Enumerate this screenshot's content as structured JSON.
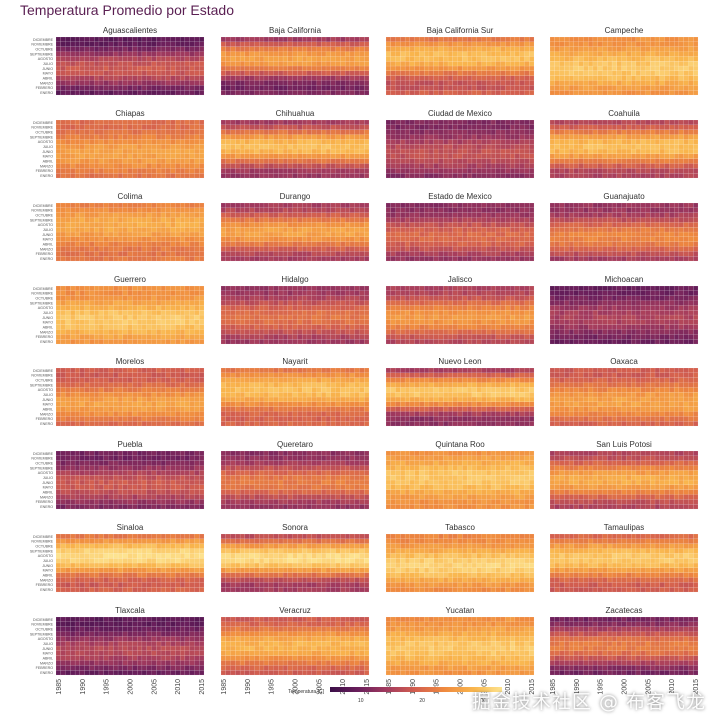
{
  "title": "Temperatura Promedio por Estado",
  "watermark": "掘金技术社区 @ 布客飞龙",
  "chart_data": {
    "type": "heatmap",
    "title": "Temperatura Promedio por Estado",
    "facet_layout": "4 columns x 8 rows",
    "x": {
      "min": 1985,
      "max": 2015,
      "ticks": [
        1985,
        1990,
        1995,
        2000,
        2005,
        2010,
        2015
      ]
    },
    "y_categories": [
      "ENERO",
      "FEBRERO",
      "MARZO",
      "ABRIL",
      "MAYO",
      "JUNIO",
      "JULIO",
      "AGOSTO",
      "SEPTIEMBRE",
      "OCTUBRE",
      "NOVIEMBRE",
      "DICIEMBRE"
    ],
    "legend": {
      "title": "Temperatura [C]",
      "position": "bottom",
      "ticks": [
        10,
        20,
        30
      ],
      "min": 5,
      "max": 33
    },
    "colors": [
      "#3b0f48",
      "#6b1f5c",
      "#a33b5e",
      "#d4604f",
      "#ef8a3f",
      "#f9b54d",
      "#fde38f"
    ],
    "panels": [
      {
        "name": "Aguascalientes",
        "base": 13,
        "amp": 5,
        "peak": 5
      },
      {
        "name": "Baja California",
        "base": 18,
        "amp": 8,
        "peak": 7
      },
      {
        "name": "Baja California Sur",
        "base": 23,
        "amp": 6,
        "peak": 7.5
      },
      {
        "name": "Campeche",
        "base": 27,
        "amp": 3,
        "peak": 5
      },
      {
        "name": "Chiapas",
        "base": 23,
        "amp": 3,
        "peak": 4.5
      },
      {
        "name": "Chihuahua",
        "base": 21,
        "amp": 8,
        "peak": 6
      },
      {
        "name": "Ciudad de Mexico",
        "base": 14,
        "amp": 3,
        "peak": 4.5
      },
      {
        "name": "Coahuila",
        "base": 22,
        "amp": 7,
        "peak": 6
      },
      {
        "name": "Colima",
        "base": 24,
        "amp": 3,
        "peak": 7
      },
      {
        "name": "Durango",
        "base": 20,
        "amp": 6,
        "peak": 5.5
      },
      {
        "name": "Estado de Mexico",
        "base": 16,
        "amp": 4,
        "peak": 4.5
      },
      {
        "name": "Guanajuato",
        "base": 18,
        "amp": 5,
        "peak": 4.5
      },
      {
        "name": "Guerrero",
        "base": 27,
        "amp": 3,
        "peak": 4.5
      },
      {
        "name": "Hidalgo",
        "base": 17,
        "amp": 4,
        "peak": 5
      },
      {
        "name": "Jalisco",
        "base": 20,
        "amp": 5,
        "peak": 5
      },
      {
        "name": "Michoacan",
        "base": 12,
        "amp": 3,
        "peak": 5
      },
      {
        "name": "Morelos",
        "base": 22,
        "amp": 4,
        "peak": 4
      },
      {
        "name": "Nayarit",
        "base": 24,
        "amp": 5,
        "peak": 7
      },
      {
        "name": "Nuevo Leon",
        "base": 21,
        "amp": 9,
        "peak": 6.5
      },
      {
        "name": "Oaxaca",
        "base": 22,
        "amp": 4,
        "peak": 4.5
      },
      {
        "name": "Puebla",
        "base": 14,
        "amp": 4,
        "peak": 4.5
      },
      {
        "name": "Queretaro",
        "base": 17,
        "amp": 5,
        "peak": 5
      },
      {
        "name": "Quintana Roo",
        "base": 27,
        "amp": 3,
        "peak": 6
      },
      {
        "name": "San Luis Potosi",
        "base": 21,
        "amp": 6,
        "peak": 5.5
      },
      {
        "name": "Sinaloa",
        "base": 25,
        "amp": 7,
        "peak": 7
      },
      {
        "name": "Sonora",
        "base": 23,
        "amp": 9,
        "peak": 6.5
      },
      {
        "name": "Tabasco",
        "base": 27,
        "amp": 4,
        "peak": 5
      },
      {
        "name": "Tamaulipas",
        "base": 24,
        "amp": 6,
        "peak": 6.5
      },
      {
        "name": "Tlaxcala",
        "base": 12,
        "amp": 4,
        "peak": 4.5
      },
      {
        "name": "Veracruz",
        "base": 23,
        "amp": 5,
        "peak": 5.5
      },
      {
        "name": "Yucatan",
        "base": 27,
        "amp": 3,
        "peak": 5
      },
      {
        "name": "Zacatecas",
        "base": 16,
        "amp": 6,
        "peak": 5.5
      }
    ]
  }
}
